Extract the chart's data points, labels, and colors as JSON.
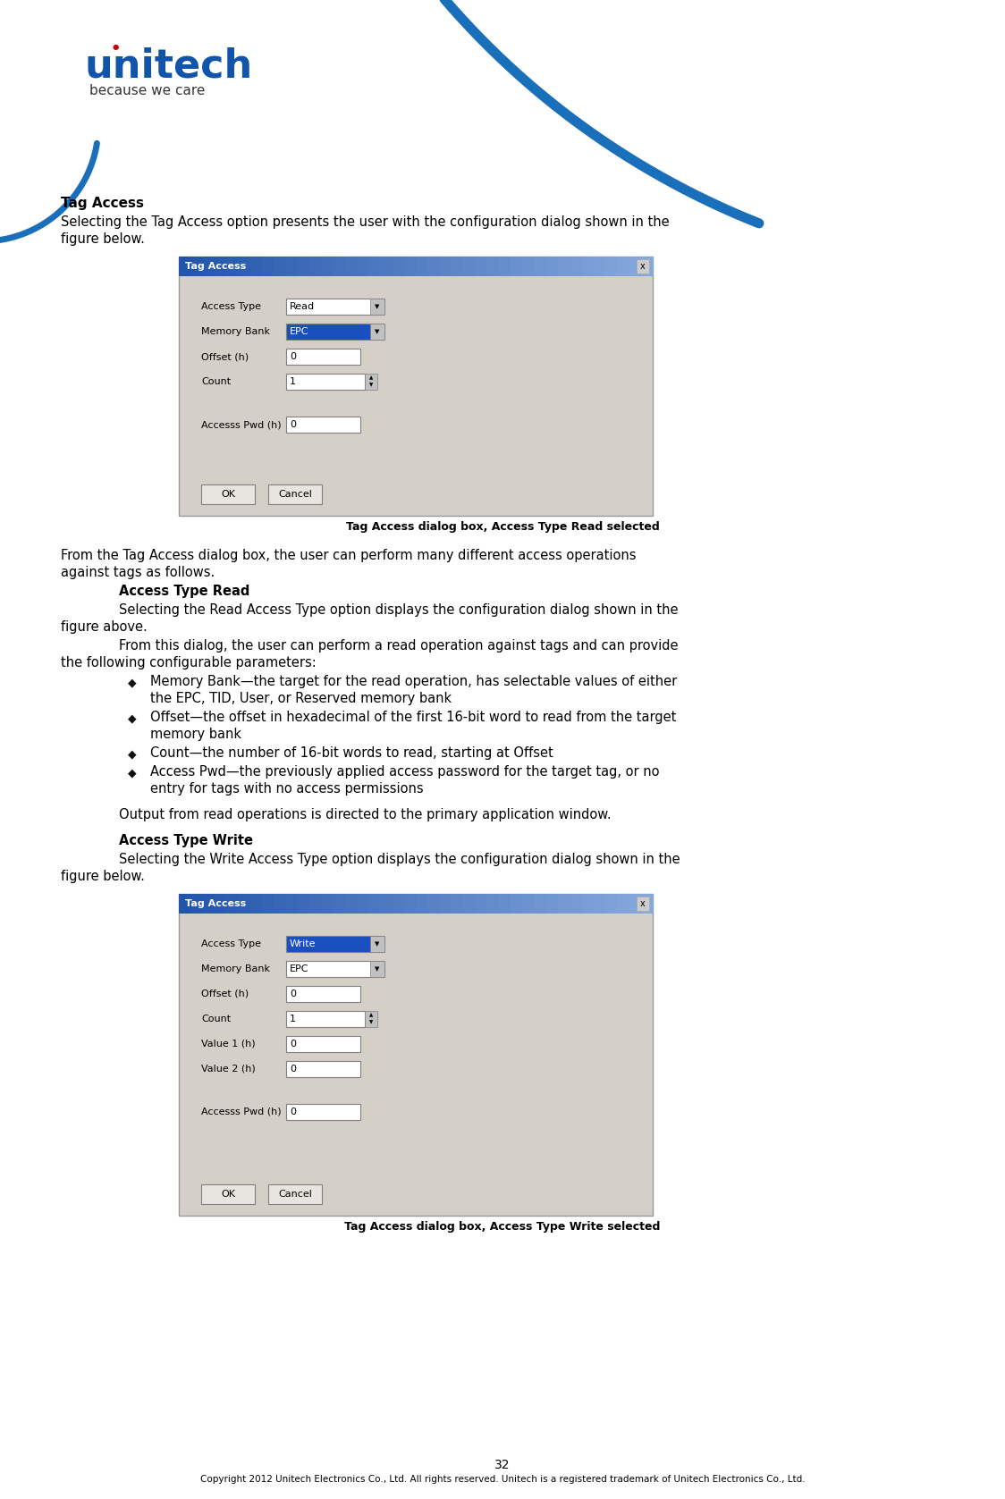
{
  "page_width": 11.24,
  "page_height": 16.77,
  "dpi": 100,
  "bg_color": "#ffffff",
  "blue_color": "#1a6fba",
  "logo": {
    "text": "unitech",
    "subtext": "because we care",
    "text_color": "#1155aa",
    "subtext_color": "#333333",
    "dot_color": "#cc0000"
  },
  "dialog1": {
    "title": "Tag Access",
    "title_bg_left": "#2255aa",
    "title_bg_right": "#88aadd",
    "title_color": "#ffffff",
    "bg": "#d4d0c8",
    "border": "#999999",
    "fields": [
      {
        "label": "Access Type",
        "value": "Read",
        "type": "dropdown",
        "highlight": false
      },
      {
        "label": "Memory Bank",
        "value": "EPC",
        "type": "dropdown",
        "highlight": true
      },
      {
        "label": "Offset (h)",
        "value": "0",
        "type": "text",
        "highlight": false
      },
      {
        "label": "Count",
        "value": "1",
        "type": "spinbox",
        "highlight": false
      }
    ],
    "pwd_label": "Accesss Pwd (h)",
    "pwd_value": "0",
    "buttons": [
      "OK",
      "Cancel"
    ]
  },
  "dialog2": {
    "title": "Tag Access",
    "title_bg_left": "#2255aa",
    "title_bg_right": "#88aadd",
    "title_color": "#ffffff",
    "bg": "#d4d0c8",
    "border": "#999999",
    "fields": [
      {
        "label": "Access Type",
        "value": "Write",
        "type": "dropdown",
        "highlight": true
      },
      {
        "label": "Memory Bank",
        "value": "EPC",
        "type": "dropdown",
        "highlight": false
      },
      {
        "label": "Offset (h)",
        "value": "0",
        "type": "text",
        "highlight": false
      },
      {
        "label": "Count",
        "value": "1",
        "type": "spinbox",
        "highlight": false
      },
      {
        "label": "Value 1 (h)",
        "value": "0",
        "type": "text",
        "highlight": false
      },
      {
        "label": "Value 2 (h)",
        "value": "0",
        "type": "text",
        "highlight": false
      }
    ],
    "pwd_label": "Accesss Pwd (h)",
    "pwd_value": "0",
    "buttons": [
      "OK",
      "Cancel"
    ]
  },
  "caption1": "Tag Access dialog box, Access Type Read selected",
  "caption2": "Tag Access dialog box, Access Type Write selected",
  "tag_access_title": "Tag Access",
  "para1_line1": "Selecting the Tag Access option presents the user with the configuration dialog shown in the",
  "para1_line2": "figure below.",
  "body1_line1": "From the Tag Access dialog box, the user can perform many different access operations",
  "body1_line2": "against tags as follows.",
  "sect1_title": "Access Type Read",
  "sect1_p1_l1": "Selecting the Read Access Type option displays the configuration dialog shown in the",
  "sect1_p1_l2": "figure above.",
  "sect1_p2_l1": "From this dialog, the user can perform a read operation against tags and can provide",
  "sect1_p2_l2": "the following configurable parameters:",
  "bullets": [
    [
      "Memory Bank—the target for the read operation, has selectable values of either",
      "the EPC, TID, User, or Reserved memory bank"
    ],
    [
      "Offset—the offset in hexadecimal of the first 16-bit word to read from the target",
      "memory bank"
    ],
    [
      "Count—the number of 16-bit words to read, starting at Offset"
    ],
    [
      "Access Pwd—the previously applied access password for the target tag, or no",
      "entry for tags with no access permissions"
    ]
  ],
  "output_line": "Output from read operations is directed to the primary application window.",
  "sect2_title": "Access Type Write",
  "sect2_p1_l1": "Selecting the Write Access Type option displays the configuration dialog shown in the",
  "sect2_p1_l2": "figure below.",
  "page_number": "32",
  "footer": "Copyright 2012 Unitech Electronics Co., Ltd. All rights reserved. Unitech is a registered trademark of Unitech Electronics Co., Ltd."
}
